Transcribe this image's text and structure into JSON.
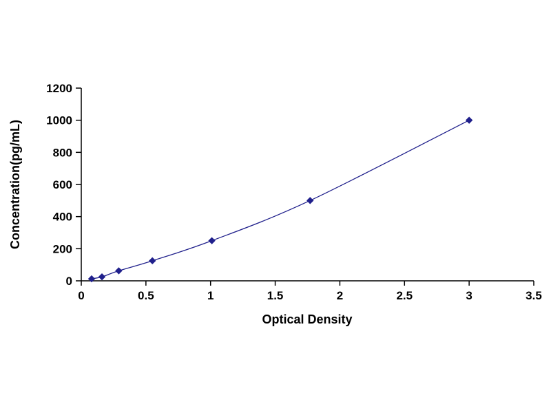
{
  "chart_data": {
    "type": "line",
    "title": "",
    "xlabel": "Optical Density",
    "ylabel": "Concentration(pg/mL)",
    "x": [
      0.08,
      0.16,
      0.29,
      0.55,
      1.01,
      1.77,
      3.0
    ],
    "y": [
      12.5,
      25,
      62.5,
      125,
      250,
      500,
      1000
    ],
    "xlim": [
      0,
      3.5
    ],
    "ylim": [
      0,
      1200
    ],
    "xticks": [
      0,
      0.5,
      1,
      1.5,
      2,
      2.5,
      3,
      3.5
    ],
    "yticks": [
      0,
      200,
      400,
      600,
      800,
      1000,
      1200
    ],
    "grid": false,
    "legend_position": "none",
    "line_color": "#20208c",
    "marker": "diamond",
    "marker_color": "#20208c",
    "axis_color": "#000000",
    "background_color": "#ffffff"
  }
}
